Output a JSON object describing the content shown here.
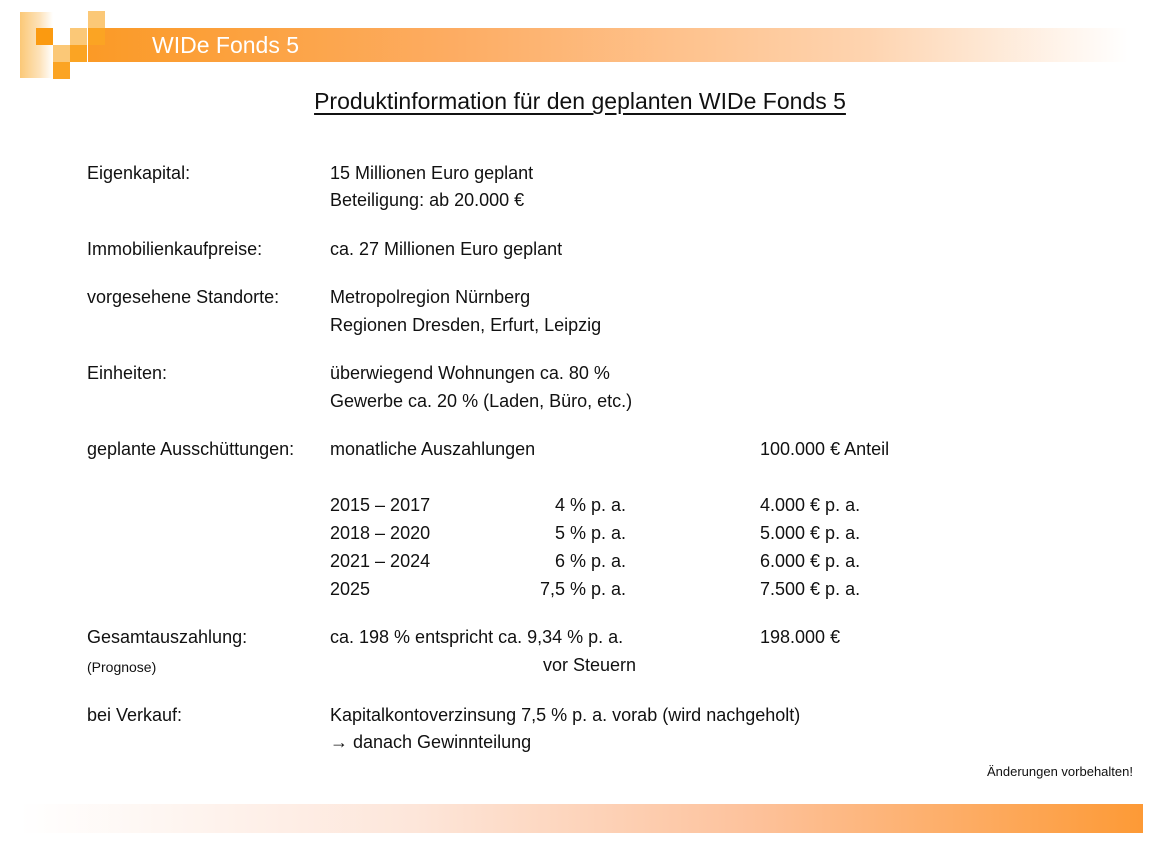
{
  "header": {
    "title": "WIDe Fonds 5",
    "colors": {
      "accent": "#fb9a26"
    }
  },
  "page_title": "Produktinformation für den geplanten WIDe Fonds 5",
  "rows": {
    "eigenkapital": {
      "label": "Eigenkapital:",
      "lines": [
        "15 Millionen Euro geplant",
        "Beteiligung: ab 20.000 €"
      ]
    },
    "kaufpreise": {
      "label": "Immobilienkaufpreise:",
      "lines": [
        "ca. 27 Millionen Euro geplant"
      ]
    },
    "standorte": {
      "label": "vorgesehene Standorte:",
      "lines": [
        "Metropolregion Nürnberg",
        "Regionen Dresden, Erfurt, Leipzig"
      ]
    },
    "einheiten": {
      "label": "Einheiten:",
      "lines": [
        "überwiegend Wohnungen ca. 80 %",
        "Gewerbe ca. 20 % (Laden, Büro, etc.)"
      ]
    },
    "ausschuettungen": {
      "label": "geplante Ausschüttungen:",
      "text": "monatliche Auszahlungen",
      "share": "100.000 € Anteil",
      "schedule": [
        {
          "period": "2015 – 2017",
          "rate": "4 % p. a.",
          "amount": "4.000 € p. a."
        },
        {
          "period": "2018 – 2020",
          "rate": "5 % p. a.",
          "amount": "5.000 € p. a."
        },
        {
          "period": "2021 – 2024",
          "rate": "6 % p. a.",
          "amount": "6.000 € p. a."
        },
        {
          "period": "2025",
          "rate": "7,5 % p. a.",
          "amount": "7.500 € p. a."
        }
      ]
    },
    "gesamt": {
      "label": "Gesamtauszahlung:",
      "sublabel": "(Prognose)",
      "text": "ca. 198 % entspricht ca. 9,34 % p. a.",
      "subtext": "vor Steuern",
      "amount": "198.000 €"
    },
    "verkauf": {
      "label": "bei Verkauf:",
      "lines": [
        "Kapitalkontoverzinsung 7,5 % p. a. vorab (wird nachgeholt)",
        "→ danach Gewinnteilung"
      ]
    }
  },
  "footer": {
    "note": "Änderungen vorbehalten!"
  }
}
